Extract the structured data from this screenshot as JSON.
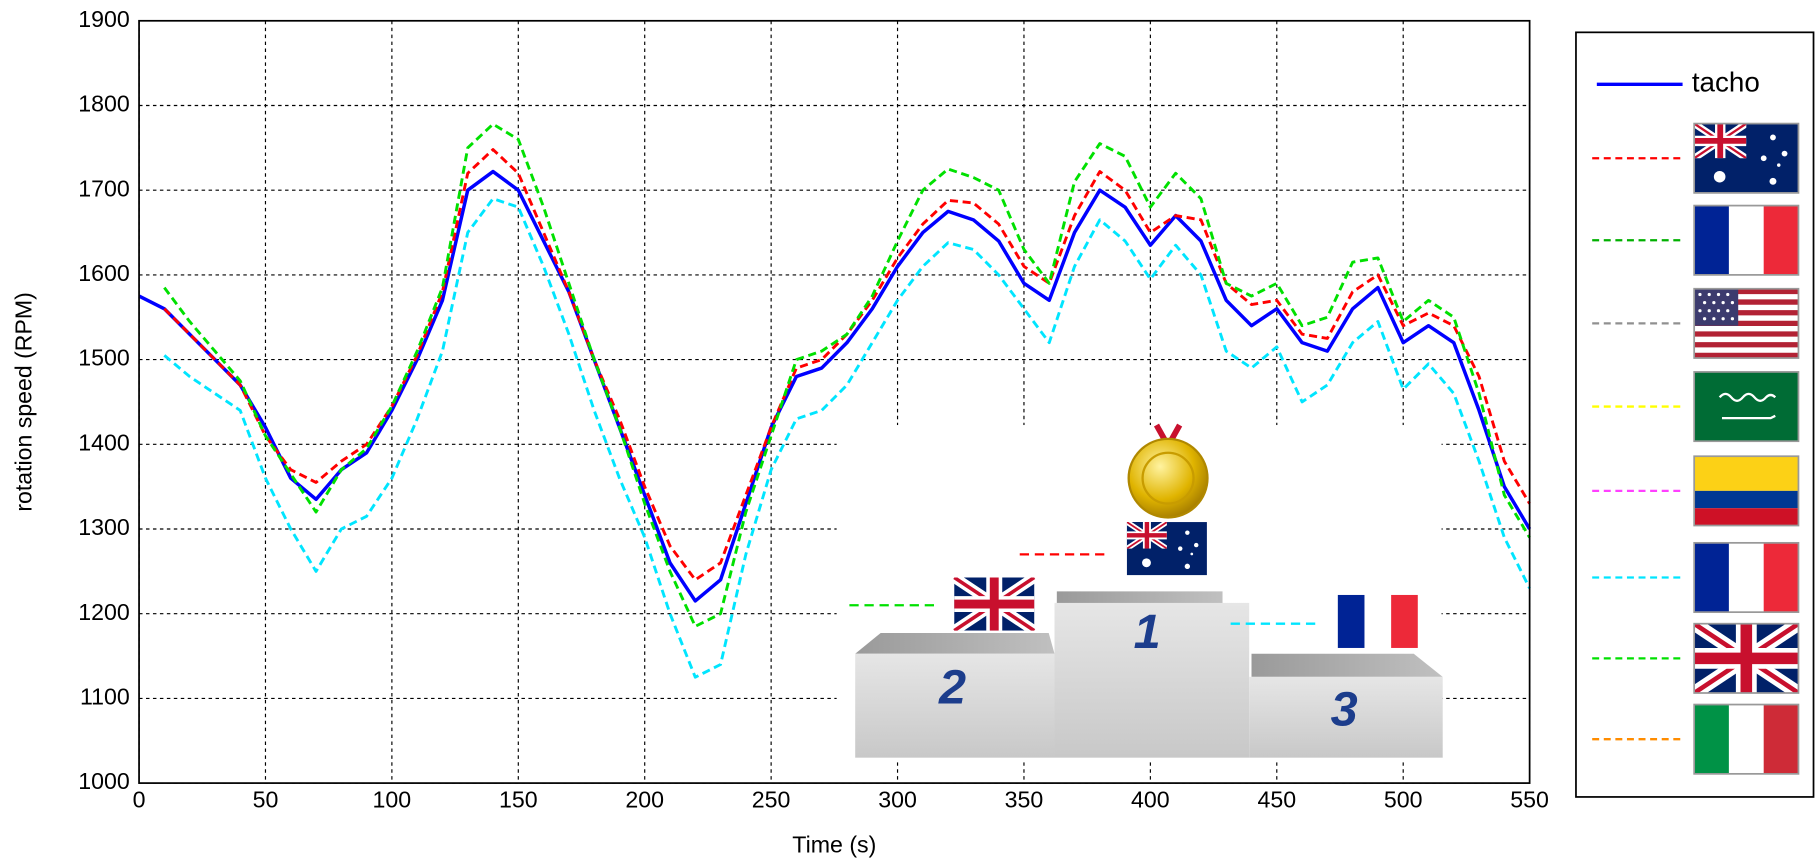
{
  "chart_data": {
    "type": "line",
    "xlabel": "Time (s)",
    "ylabel": "rotation speed (RPM)",
    "x": [
      0,
      10,
      20,
      30,
      40,
      50,
      60,
      70,
      80,
      90,
      100,
      110,
      120,
      130,
      140,
      150,
      160,
      170,
      180,
      190,
      200,
      210,
      220,
      230,
      240,
      250,
      260,
      270,
      280,
      290,
      300,
      310,
      320,
      330,
      340,
      350,
      360,
      370,
      380,
      390,
      400,
      410,
      420,
      430,
      440,
      450,
      460,
      470,
      480,
      490,
      500,
      510,
      520,
      530,
      540,
      550
    ],
    "series": [
      {
        "name": "tacho",
        "color": "#0000ff",
        "dashed": false,
        "values": [
          1575,
          1560,
          1530,
          1500,
          1470,
          1420,
          1360,
          1335,
          1370,
          1390,
          1440,
          1500,
          1570,
          1700,
          1722,
          1700,
          1640,
          1580,
          1500,
          1420,
          1340,
          1260,
          1215,
          1240,
          1330,
          1420,
          1480,
          1490,
          1520,
          1560,
          1610,
          1650,
          1675,
          1665,
          1640,
          1590,
          1570,
          1650,
          1700,
          1680,
          1635,
          1670,
          1640,
          1570,
          1540,
          1560,
          1520,
          1510,
          1560,
          1585,
          1520,
          1540,
          1520,
          1440,
          1350,
          1300
        ]
      },
      {
        "color": "#ff0000",
        "dashed": true,
        "values": [
          null,
          1560,
          1530,
          1500,
          1470,
          1410,
          1370,
          1355,
          1380,
          1400,
          1445,
          1505,
          1580,
          1720,
          1748,
          1720,
          1650,
          1580,
          1500,
          1430,
          1350,
          1280,
          1240,
          1260,
          1340,
          1420,
          1490,
          1500,
          1530,
          1570,
          1620,
          1660,
          1688,
          1685,
          1660,
          1610,
          1590,
          1670,
          1722,
          1700,
          1650,
          1670,
          1665,
          1590,
          1565,
          1570,
          1530,
          1525,
          1580,
          1600,
          1540,
          1555,
          1540,
          1480,
          1380,
          1330
        ]
      },
      {
        "color": "#00e000",
        "dashed": true,
        "values": [
          null,
          1585,
          1545,
          1510,
          1475,
          1410,
          1365,
          1320,
          1370,
          1395,
          1445,
          1510,
          1585,
          1750,
          1778,
          1760,
          1680,
          1590,
          1500,
          1420,
          1330,
          1250,
          1185,
          1200,
          1320,
          1410,
          1500,
          1510,
          1530,
          1575,
          1640,
          1700,
          1725,
          1715,
          1700,
          1630,
          1590,
          1710,
          1755,
          1740,
          1680,
          1720,
          1690,
          1590,
          1575,
          1590,
          1540,
          1550,
          1615,
          1620,
          1545,
          1570,
          1550,
          1460,
          1340,
          1290
        ]
      },
      {
        "color": "#00e5ff",
        "dashed": true,
        "values": [
          null,
          1505,
          1480,
          1460,
          1440,
          1360,
          1300,
          1250,
          1300,
          1315,
          1360,
          1430,
          1510,
          1650,
          1690,
          1680,
          1610,
          1530,
          1440,
          1360,
          1290,
          1200,
          1125,
          1140,
          1270,
          1370,
          1430,
          1440,
          1470,
          1520,
          1570,
          1610,
          1638,
          1630,
          1600,
          1560,
          1520,
          1610,
          1665,
          1640,
          1595,
          1635,
          1600,
          1510,
          1490,
          1515,
          1450,
          1470,
          1520,
          1545,
          1465,
          1495,
          1460,
          1380,
          1290,
          1230
        ]
      }
    ],
    "legend": [
      {
        "color": "#0000ff",
        "dashed": false
      },
      {
        "color": "#ff0000",
        "dashed": true
      },
      {
        "color": "#00b000",
        "dashed": true
      },
      {
        "color": "#909090",
        "dashed": true
      },
      {
        "color": "#ffff00",
        "dashed": true
      },
      {
        "color": "#ff40ff",
        "dashed": true
      },
      {
        "color": "#00e5ff",
        "dashed": true
      },
      {
        "color": "#00e000",
        "dashed": true
      },
      {
        "color": "#ff8c00",
        "dashed": true
      }
    ],
    "annotations": [
      "1",
      "2",
      "3"
    ],
    "xlim": [
      0,
      550
    ],
    "xticks": [
      0,
      50,
      100,
      150,
      200,
      250,
      300,
      350,
      400,
      450,
      500,
      550
    ],
    "ylim": [
      1000,
      1900
    ],
    "yticks": [
      1000,
      1100,
      1200,
      1300,
      1400,
      1500,
      1600,
      1700,
      1800,
      1900
    ],
    "grid": true
  }
}
